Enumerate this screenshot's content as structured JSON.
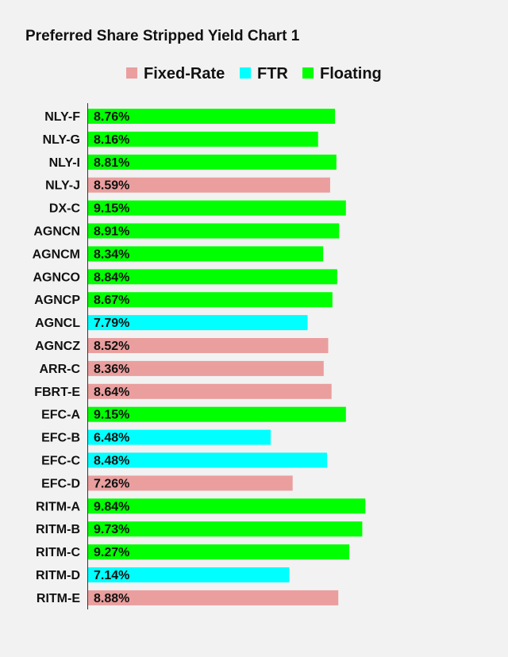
{
  "chart_data": {
    "type": "bar",
    "orientation": "horizontal",
    "title": "Preferred Share Stripped Yield Chart 1",
    "xlabel": "",
    "ylabel": "",
    "xlim": [
      0,
      10.2
    ],
    "grid": false,
    "legend_position": "top",
    "value_format": "percent",
    "colors": {
      "Fixed-Rate": "#ea9e9e",
      "FTR": "#00ffff",
      "Floating": "#00ff00"
    },
    "legend": [
      "Fixed-Rate",
      "FTR",
      "Floating"
    ],
    "categories": [
      "NLY-F",
      "NLY-G",
      "NLY-I",
      "NLY-J",
      "DX-C",
      "AGNCN",
      "AGNCM",
      "AGNCO",
      "AGNCP",
      "AGNCL",
      "AGNCZ",
      "ARR-C",
      "FBRT-E",
      "EFC-A",
      "EFC-B",
      "EFC-C",
      "EFC-D",
      "RITM-A",
      "RITM-B",
      "RITM-C",
      "RITM-D",
      "RITM-E"
    ],
    "values": [
      8.76,
      8.16,
      8.81,
      8.59,
      9.15,
      8.91,
      8.34,
      8.84,
      8.67,
      7.79,
      8.52,
      8.36,
      8.64,
      9.15,
      6.48,
      8.48,
      7.26,
      9.84,
      9.73,
      9.27,
      7.14,
      8.88
    ],
    "labels": [
      "8.76%",
      "8.16%",
      "8.81%",
      "8.59%",
      "9.15%",
      "8.91%",
      "8.34%",
      "8.84%",
      "8.67%",
      "7.79%",
      "8.52%",
      "8.36%",
      "8.64%",
      "9.15%",
      "6.48%",
      "8.48%",
      "7.26%",
      "9.84%",
      "9.73%",
      "9.27%",
      "7.14%",
      "8.88%"
    ],
    "groups": [
      "Floating",
      "Floating",
      "Floating",
      "Fixed-Rate",
      "Floating",
      "Floating",
      "Floating",
      "Floating",
      "Floating",
      "FTR",
      "Fixed-Rate",
      "Fixed-Rate",
      "Fixed-Rate",
      "Floating",
      "FTR",
      "FTR",
      "Fixed-Rate",
      "Floating",
      "Floating",
      "Floating",
      "FTR",
      "Fixed-Rate"
    ]
  }
}
